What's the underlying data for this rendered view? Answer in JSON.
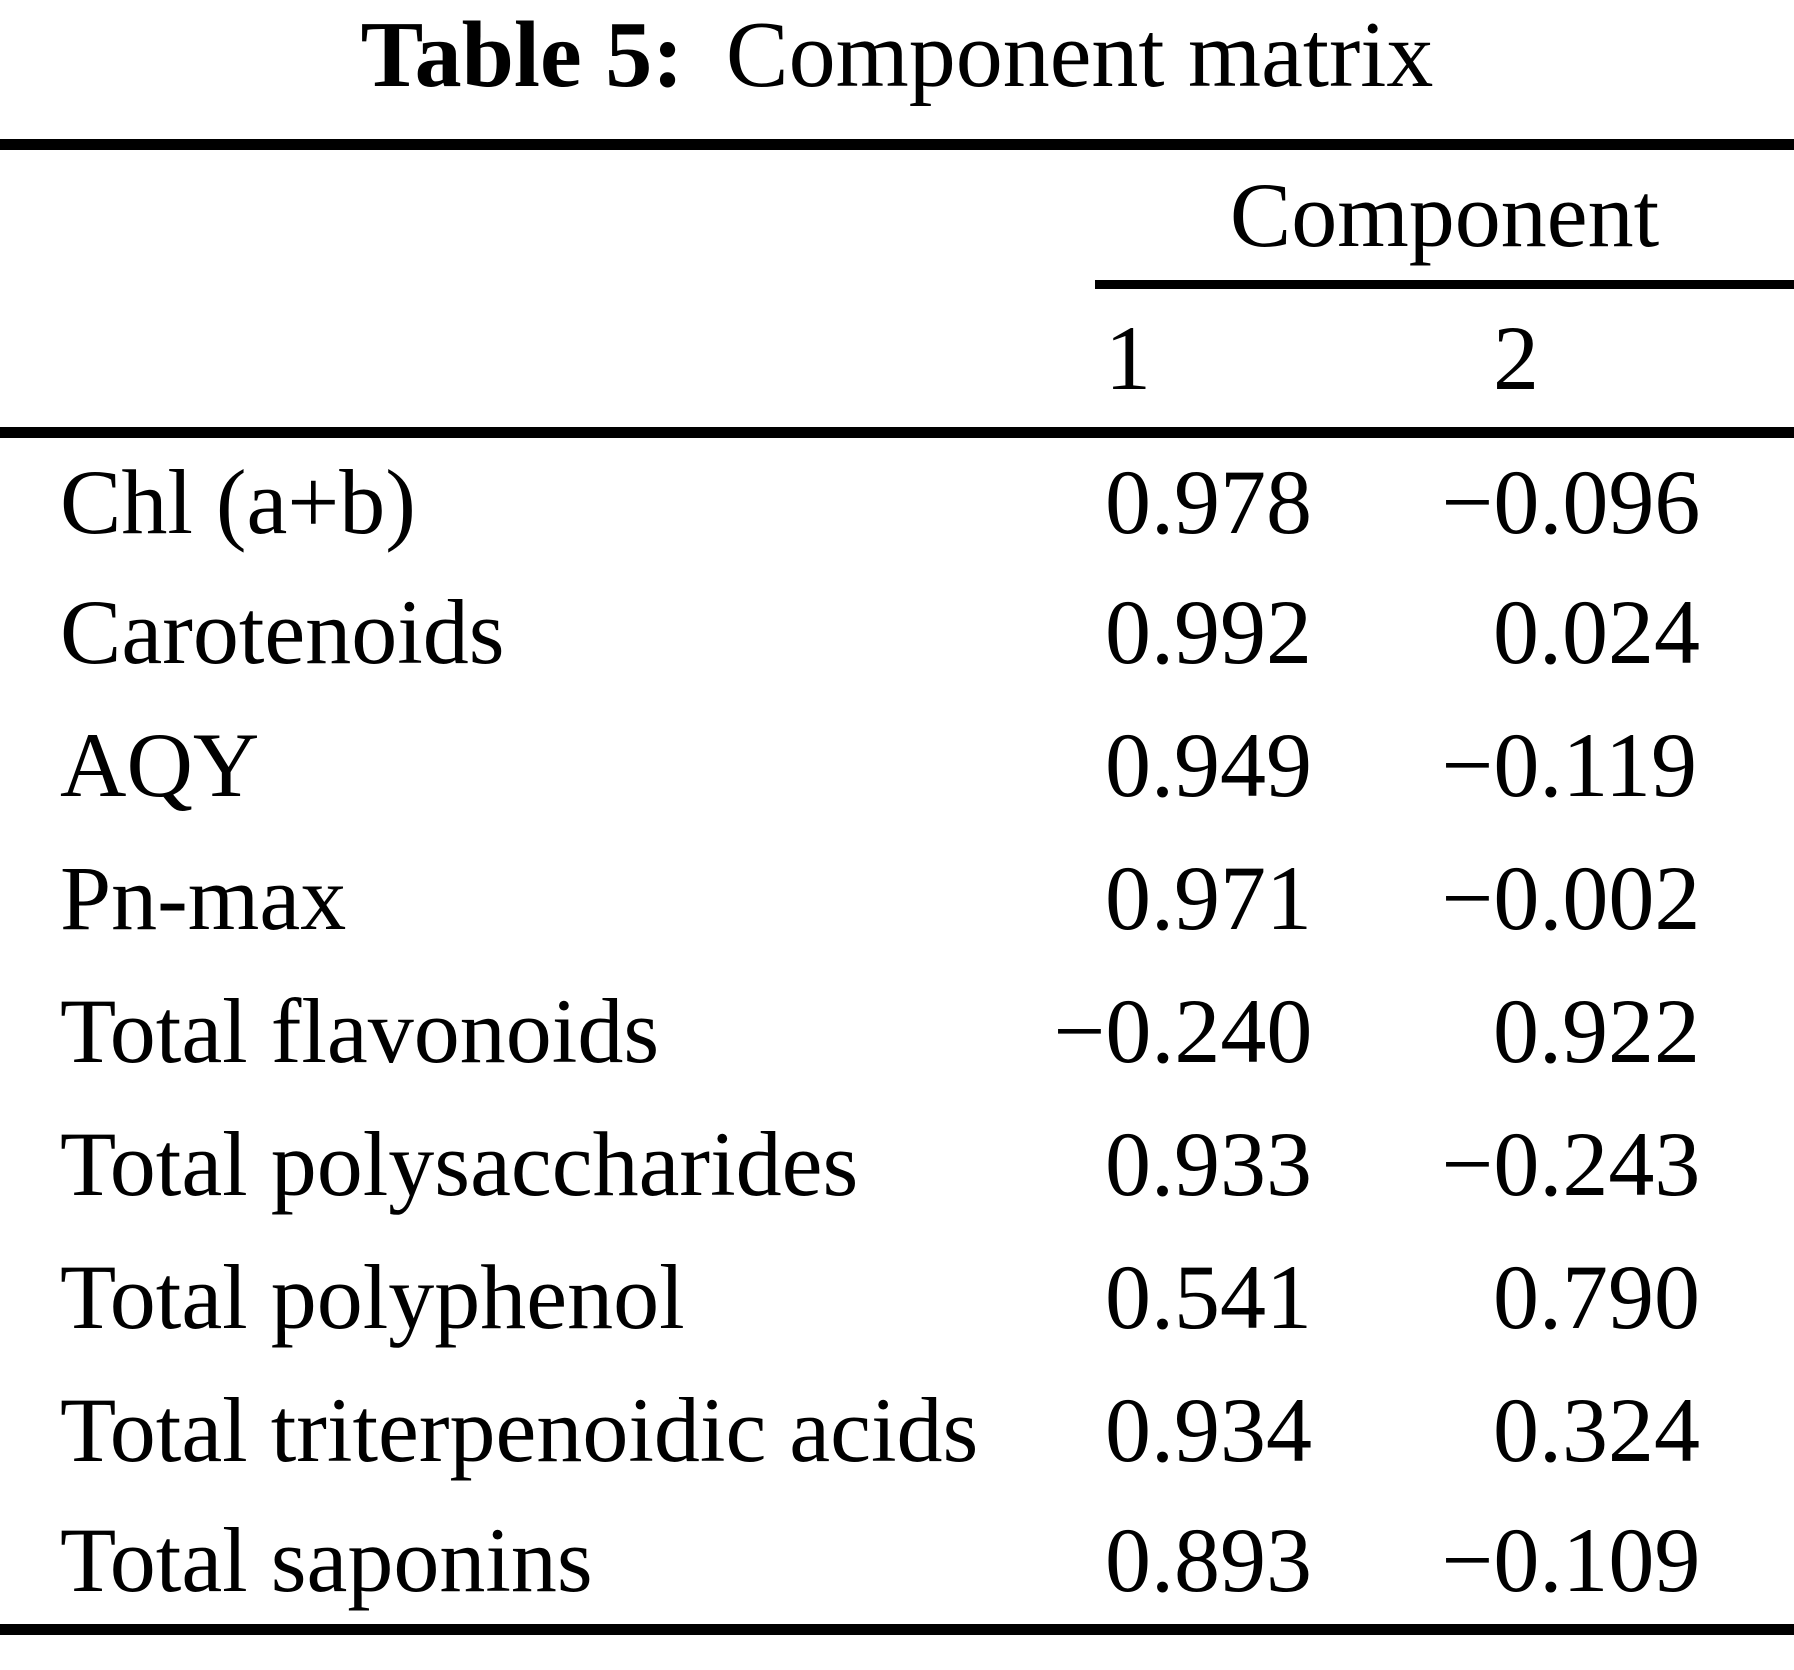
{
  "caption": {
    "label": "Table 5:",
    "title": "Component matrix"
  },
  "table": {
    "group_header": "Component",
    "columns": [
      "1",
      "2"
    ],
    "rows": [
      {
        "label": "Chl (a+b)",
        "c1": "0.978",
        "c2": "−0.096"
      },
      {
        "label": "Carotenoids",
        "c1": "0.992",
        "c2": "0.024"
      },
      {
        "label": "AQY",
        "c1": "0.949",
        "c2": "−0.119"
      },
      {
        "label": "Pn-max",
        "c1": "0.971",
        "c2": "−0.002"
      },
      {
        "label": "Total flavonoids",
        "c1": "−0.240",
        "c2": "0.922"
      },
      {
        "label": "Total polysaccharides",
        "c1": "0.933",
        "c2": "−0.243"
      },
      {
        "label": "Total polyphenol",
        "c1": "0.541",
        "c2": "0.790"
      },
      {
        "label": "Total triterpenoidic acids",
        "c1": "0.934",
        "c2": "0.324"
      },
      {
        "label": "Total saponins",
        "c1": "0.893",
        "c2": "−0.109"
      }
    ],
    "colors": {
      "text": "#000000",
      "background": "#ffffff",
      "rule": "#000000"
    }
  }
}
